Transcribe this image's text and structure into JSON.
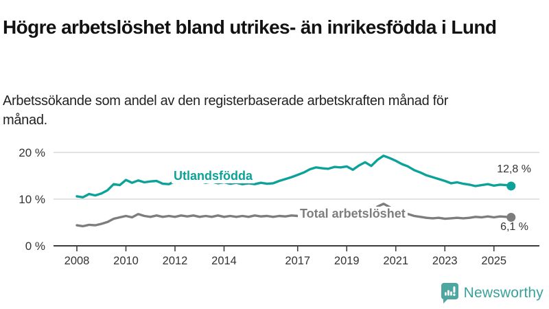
{
  "header": {
    "title": "Högre arbetslöshet bland utrikes- än inrikesfödda i Lund",
    "subtitle": "Arbetssökande som andel av den registerbaserade arbetskraften månad för månad."
  },
  "chart_data": {
    "type": "line",
    "title": "Högre arbetslöshet bland utrikes- än inrikesfödda i Lund",
    "subtitle": "Arbetssökande som andel av den registerbaserade arbetskraften månad för månad.",
    "unit": "%",
    "xlim": [
      2007.5,
      2026.2
    ],
    "ylim": [
      0,
      20.5
    ],
    "grid": "horizontal",
    "legend": "inline-labels",
    "x_ticks": [
      {
        "year": 2008,
        "label": "2008"
      },
      {
        "year": 2010,
        "label": "2010"
      },
      {
        "year": 2012,
        "label": "2012"
      },
      {
        "year": 2014,
        "label": "2014"
      },
      {
        "year": 2017,
        "label": "2017"
      },
      {
        "year": 2019,
        "label": "2019"
      },
      {
        "year": 2021,
        "label": "2021"
      },
      {
        "year": 2023,
        "label": "2023"
      },
      {
        "year": 2025,
        "label": "2025"
      }
    ],
    "y_ticks": [
      {
        "value": 0,
        "label": "0 %"
      },
      {
        "value": 10,
        "label": "10 %"
      },
      {
        "value": 20,
        "label": "20 %"
      }
    ],
    "x": [
      2008,
      2008.25,
      2008.5,
      2008.75,
      2009,
      2009.25,
      2009.5,
      2009.75,
      2010,
      2010.25,
      2010.5,
      2010.75,
      2011,
      2011.25,
      2011.5,
      2011.75,
      2012,
      2012.25,
      2012.5,
      2012.75,
      2013,
      2013.25,
      2013.5,
      2013.75,
      2014,
      2014.25,
      2014.5,
      2014.75,
      2015,
      2015.25,
      2015.5,
      2015.75,
      2016,
      2016.25,
      2016.5,
      2016.75,
      2017,
      2017.25,
      2017.5,
      2017.75,
      2018,
      2018.25,
      2018.5,
      2018.75,
      2019,
      2019.25,
      2019.5,
      2019.75,
      2020,
      2020.25,
      2020.5,
      2020.75,
      2021,
      2021.25,
      2021.5,
      2021.75,
      2022,
      2022.25,
      2022.5,
      2022.75,
      2023,
      2023.25,
      2023.5,
      2023.75,
      2024,
      2024.25,
      2024.5,
      2024.75,
      2025,
      2025.25,
      2025.5,
      2025.7
    ],
    "series": [
      {
        "name": "Utlandsfödda",
        "color": "#0ca29a",
        "end_label": "12,8 %",
        "end_value": 12.8,
        "values": [
          10.6,
          10.4,
          11.1,
          10.8,
          11.2,
          11.9,
          13.2,
          13.0,
          14.1,
          13.5,
          14.0,
          13.6,
          13.8,
          13.9,
          13.3,
          13.2,
          13.8,
          13.6,
          13.9,
          13.6,
          13.8,
          13.5,
          13.7,
          13.4,
          13.6,
          13.3,
          13.5,
          13.2,
          13.4,
          13.2,
          13.5,
          13.3,
          13.4,
          13.9,
          14.3,
          14.7,
          15.2,
          15.7,
          16.4,
          16.8,
          16.6,
          16.5,
          16.9,
          16.8,
          17.0,
          16.3,
          17.2,
          17.9,
          17.1,
          18.4,
          19.3,
          18.8,
          18.2,
          17.5,
          17.0,
          16.2,
          15.7,
          15.1,
          14.7,
          14.3,
          13.9,
          13.4,
          13.6,
          13.3,
          13.1,
          12.8,
          13.0,
          13.2,
          12.9,
          13.1,
          13.0,
          12.8
        ]
      },
      {
        "name": "Total arbetslöshet",
        "color": "#7d7d7d",
        "end_label": "6,1 %",
        "end_value": 6.1,
        "values": [
          4.4,
          4.2,
          4.5,
          4.4,
          4.7,
          5.1,
          5.8,
          6.1,
          6.4,
          6.1,
          6.8,
          6.4,
          6.2,
          6.5,
          6.2,
          6.4,
          6.2,
          6.5,
          6.3,
          6.5,
          6.2,
          6.4,
          6.2,
          6.5,
          6.2,
          6.4,
          6.2,
          6.4,
          6.2,
          6.5,
          6.3,
          6.4,
          6.2,
          6.4,
          6.3,
          6.5,
          6.4,
          6.2,
          6.4,
          6.3,
          6.2,
          6.1,
          6.3,
          6.2,
          6.3,
          6.1,
          6.3,
          6.4,
          6.6,
          8.4,
          9.0,
          8.3,
          7.6,
          7.2,
          6.8,
          6.4,
          6.2,
          6.0,
          5.9,
          6.0,
          5.8,
          5.9,
          6.0,
          5.9,
          6.0,
          6.2,
          6.1,
          6.3,
          6.1,
          6.3,
          6.2,
          6.1
        ]
      }
    ]
  },
  "footer": {
    "brand": "Newsworthy"
  },
  "colors": {
    "accent": "#0ca29a",
    "series_gray": "#7d7d7d",
    "grid": "#d0d0d0",
    "axis": "#3c3c3c",
    "tick_text": "#333333",
    "logo": "#4ea6a1",
    "wordmark": "#38a19b"
  }
}
